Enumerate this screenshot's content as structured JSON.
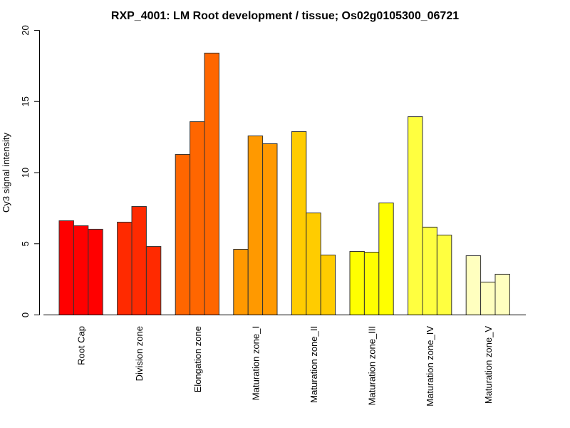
{
  "chart_data": {
    "type": "bar",
    "title": "RXP_4001: LM Root development / tissue; Os02g0105300_06721",
    "xlabel": "",
    "ylabel": "Cy3 signal intensity",
    "ylim": [
      0,
      20
    ],
    "yticks": [
      0,
      5,
      10,
      15,
      20
    ],
    "grid": false,
    "legend": "none",
    "categories": [
      "Root Cap",
      "Division zone",
      "Elongation zone",
      "Maturation zone_I",
      "Maturation zone_II",
      "Maturation zone_III",
      "Maturation zone_IV",
      "Maturation zone_V"
    ],
    "colors": [
      "#FF0000",
      "#FF2A00",
      "#FF6600",
      "#FF9900",
      "#FFCC00",
      "#FFFF00",
      "#FFFF40",
      "#FFFFBF"
    ],
    "replicates_per_category": 3,
    "values": [
      [
        6.62,
        6.27,
        6.02
      ],
      [
        6.52,
        7.62,
        4.81
      ],
      [
        11.28,
        13.58,
        18.4
      ],
      [
        4.61,
        12.58,
        12.03
      ],
      [
        12.88,
        7.17,
        4.21
      ],
      [
        4.46,
        4.41,
        7.87
      ],
      [
        13.93,
        6.17,
        5.61
      ],
      [
        4.16,
        2.31,
        2.86
      ]
    ]
  }
}
